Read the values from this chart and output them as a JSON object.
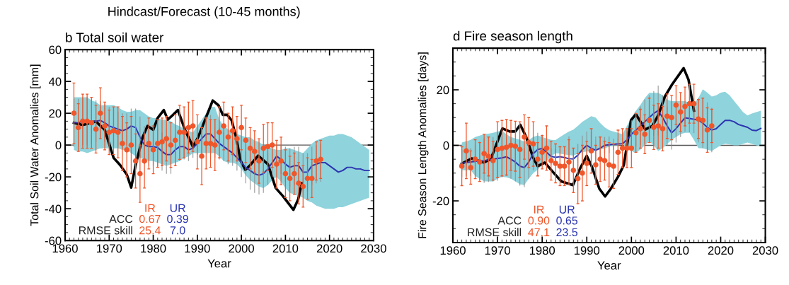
{
  "chart_data": [
    {
      "type": "line",
      "title": "Hindcast/Forecast (10-45 months)",
      "subtitle": "b Total soil water",
      "xlabel": "Year",
      "ylabel": "Total Soil Water Anomalies [mm]",
      "xlim": [
        1960,
        2030
      ],
      "xticks": [
        1960,
        1970,
        1980,
        1990,
        2000,
        2010,
        2020,
        2030
      ],
      "ylim": [
        -60,
        60
      ],
      "yticks": [
        -60,
        -40,
        -20,
        0,
        20,
        40,
        60
      ],
      "grid": false,
      "ref_lines": [
        {
          "axis": "y",
          "value": 0,
          "color": "#555555"
        }
      ],
      "annotations": [
        "IR",
        "UR",
        "ACC",
        "0.67",
        "0.39",
        "RMSE skill",
        "25.4",
        "7.0"
      ],
      "x": [
        1962,
        1963,
        1964,
        1965,
        1966,
        1967,
        1968,
        1969,
        1970,
        1971,
        1972,
        1973,
        1974,
        1975,
        1976,
        1977,
        1978,
        1979,
        1980,
        1981,
        1982,
        1983,
        1984,
        1985,
        1986,
        1987,
        1988,
        1989,
        1990,
        1991,
        1992,
        1993,
        1994,
        1995,
        1996,
        1997,
        1998,
        1999,
        2000,
        2001,
        2002,
        2003,
        2004,
        2005,
        2006,
        2007,
        2008,
        2009,
        2010,
        2011,
        2012,
        2013,
        2014,
        2015,
        2016,
        2017,
        2018
      ],
      "series": [
        {
          "type": "line",
          "color": "#2b35b0",
          "x": [
            1962,
            1963,
            1964,
            1965,
            1966,
            1967,
            1968,
            1969,
            1970,
            1971,
            1972,
            1973,
            1974,
            1975,
            1976,
            1977,
            1978,
            1979,
            1980,
            1981,
            1982,
            1983,
            1984,
            1985,
            1986,
            1987,
            1988,
            1989,
            1990,
            1991,
            1992,
            1993,
            1994,
            1995,
            1996,
            1997,
            1998,
            1999,
            2000,
            2001,
            2002,
            2003,
            2004,
            2005,
            2006,
            2007,
            2008,
            2009,
            2010,
            2011,
            2012,
            2013,
            2014,
            2015,
            2016,
            2017,
            2018,
            2019,
            2020,
            2021,
            2022,
            2023,
            2024,
            2025,
            2026,
            2027,
            2028,
            2029
          ],
          "values": [
            14,
            14,
            15,
            15,
            15,
            15,
            15.5,
            14,
            12,
            11,
            10,
            9,
            10,
            12,
            11,
            5,
            0,
            -1,
            -1,
            -1.5,
            -4,
            -6,
            -6,
            -3,
            -1,
            -1,
            -3,
            -2,
            1,
            4,
            7,
            7,
            4,
            1,
            -1,
            -3,
            -5,
            -8,
            -11,
            -14,
            -16,
            -18,
            -19,
            -18,
            -15,
            -11,
            -7,
            -9,
            -12,
            -14,
            -13,
            -13,
            -17,
            -17,
            -13,
            -12,
            -11,
            -11,
            -13,
            -15,
            -17,
            -16,
            -14,
            -14,
            -15,
            -15,
            -16,
            -16
          ],
          "errors": [
            15,
            15,
            15,
            15,
            14,
            13,
            12,
            12,
            12,
            12,
            11,
            11,
            10,
            11,
            12,
            13,
            12,
            12,
            12,
            12,
            12,
            12,
            12,
            10,
            9,
            8,
            7,
            6,
            7,
            9,
            11,
            12,
            12,
            10,
            9,
            9,
            8,
            8,
            9,
            10,
            12,
            12,
            12,
            12,
            10,
            9,
            7,
            9,
            11,
            12,
            12,
            12,
            12,
            12,
            12,
            12,
            12,
            null,
            null,
            null,
            null,
            null,
            null,
            null,
            null,
            null,
            null,
            null
          ],
          "upper": [
            30,
            30,
            30,
            30,
            28,
            27,
            25,
            25,
            25,
            25,
            24,
            22,
            21,
            21,
            22,
            22,
            20,
            18,
            17,
            17,
            16,
            16,
            15,
            13,
            12,
            10,
            9,
            8,
            12,
            16,
            20,
            24,
            24,
            16,
            12,
            10,
            8,
            7,
            6,
            5,
            5,
            3,
            2,
            0,
            -1,
            -2,
            -3,
            -3,
            -2,
            -2,
            -3,
            -4,
            -5,
            -2,
            1,
            3,
            4,
            5,
            6,
            6,
            7,
            7,
            6,
            5,
            3,
            1,
            -1,
            -3
          ],
          "lower": [
            -3,
            -4,
            -4,
            -5,
            -4,
            -3,
            -2,
            -2,
            -2,
            -2,
            -2,
            -3,
            -3,
            -5,
            -7,
            -8,
            -9,
            -10,
            -10,
            -11,
            -12,
            -13,
            -12,
            -11,
            -10,
            -8,
            -7,
            -5,
            -5,
            -5,
            -5,
            -5,
            -5,
            -7,
            -10,
            -11,
            -11,
            -12,
            -15,
            -19,
            -22,
            -24,
            -26,
            -27,
            -25,
            -22,
            -20,
            -23,
            -27,
            -30,
            -31,
            -32,
            -33,
            -35,
            -36,
            -38,
            -39,
            -40,
            -40,
            -40,
            -39,
            -39,
            -38,
            -37,
            -36,
            -35,
            -34,
            -33
          ]
        },
        {
          "type": "scatter",
          "marker": "circle",
          "color": "#f0562a",
          "values": [
            20,
            11,
            15,
            15,
            14,
            10,
            20,
            12,
            8,
            9,
            8,
            1,
            -3,
            0,
            -10,
            -18,
            -10,
            1,
            -3,
            1,
            2,
            4,
            0,
            3,
            8,
            8,
            11,
            12,
            2,
            -7,
            1,
            1,
            0,
            8,
            12,
            5,
            9,
            4,
            11,
            3,
            -2,
            -4,
            -10,
            -2,
            -1,
            0,
            -12,
            -10,
            -18,
            -21,
            -18,
            -24,
            -26,
            -21,
            -21,
            -10,
            -9
          ],
          "errors": [
            19,
            15,
            17,
            17,
            16,
            15,
            16,
            15,
            14,
            15,
            16,
            17,
            17,
            18,
            17,
            18,
            17,
            16,
            15,
            15,
            15,
            14,
            14,
            16,
            17,
            16,
            16,
            16,
            17,
            18,
            16,
            15,
            16,
            16,
            15,
            15,
            15,
            14,
            14,
            14,
            13,
            13,
            14,
            15,
            15,
            14,
            15,
            15,
            15,
            14,
            13,
            13,
            13,
            13,
            12,
            12,
            12
          ]
        },
        {
          "color": "#000000",
          "x": [
            1962,
            1964,
            1967,
            1969,
            1971,
            1972.5,
            1974,
            1975,
            1976,
            1977.6,
            1978.7,
            1980,
            1981,
            1982.4,
            1983.3,
            1984.3,
            1985.6,
            1987.2,
            1989,
            1990.2,
            1993.5,
            1994.8,
            1995.8,
            1996.8,
            1997.8,
            1998.8,
            1999.8,
            2000.9,
            2002,
            2003.8,
            2006,
            2007.8,
            2009.4,
            2011.8,
            2012.9,
            2013.7
          ],
          "values": [
            14,
            12.6,
            14.8,
            9.6,
            -8,
            -12.6,
            -18.5,
            -26.7,
            -12.6,
            5,
            12,
            9.6,
            17,
            22,
            16,
            18.5,
            22,
            9.6,
            -1,
            5,
            28,
            25,
            19,
            19,
            15.5,
            5,
            -9.6,
            -15.6,
            -12.6,
            -6.7,
            -12,
            -27,
            -32,
            -40.7,
            -34,
            -24
          ]
        }
      ]
    },
    {
      "type": "line",
      "title": "d Fire season length",
      "xlabel": "Year",
      "ylabel": "Fire Season Length Anomalies [days]",
      "xlim": [
        1960,
        2030
      ],
      "xticks": [
        1960,
        1970,
        1980,
        1990,
        2000,
        2010,
        2020,
        2030
      ],
      "ylim": [
        -35,
        35
      ],
      "yticks": [
        -20,
        0,
        20
      ],
      "grid": false,
      "ref_lines": [
        {
          "axis": "y",
          "value": 0,
          "color": "#555555"
        }
      ],
      "annotations": [
        "IR",
        "UR",
        "ACC",
        "0.90",
        "0.65",
        "RMSE skill",
        "47.1",
        "23.5"
      ],
      "x": [
        1962,
        1963,
        1964,
        1965,
        1966,
        1967,
        1968,
        1969,
        1970,
        1971,
        1972,
        1973,
        1974,
        1975,
        1976,
        1977,
        1978,
        1979,
        1980,
        1981,
        1982,
        1983,
        1984,
        1985,
        1986,
        1987,
        1988,
        1989,
        1990,
        1991,
        1992,
        1993,
        1994,
        1995,
        1996,
        1997,
        1998,
        1999,
        2000,
        2001,
        2002,
        2003,
        2004,
        2005,
        2006,
        2007,
        2008,
        2009,
        2010,
        2011,
        2012,
        2013,
        2014,
        2015,
        2016,
        2017,
        2018
      ],
      "series": [
        {
          "type": "line",
          "color": "#2b35b0",
          "x": [
            1962,
            1963,
            1964,
            1965,
            1966,
            1967,
            1968,
            1969,
            1970,
            1971,
            1972,
            1973,
            1974,
            1975,
            1976,
            1977,
            1978,
            1979,
            1980,
            1981,
            1982,
            1983,
            1984,
            1985,
            1986,
            1987,
            1988,
            1989,
            1990,
            1991,
            1992,
            1993,
            1994,
            1995,
            1996,
            1997,
            1998,
            1999,
            2000,
            2001,
            2002,
            2003,
            2004,
            2005,
            2006,
            2007,
            2008,
            2009,
            2010,
            2011,
            2012,
            2013,
            2014,
            2015,
            2016,
            2017,
            2018,
            2019,
            2020,
            2021,
            2022,
            2023,
            2024,
            2025,
            2026,
            2027,
            2028,
            2029
          ],
          "values": [
            -6.4,
            -6.2,
            -6,
            -5.8,
            -5.6,
            -5.5,
            -5.2,
            -5,
            -4.7,
            -4.5,
            -4.1,
            -5,
            -6,
            -7.5,
            -8,
            -6,
            -3,
            -1.5,
            -1.1,
            -2.5,
            -4,
            -4.3,
            -4.1,
            -4.4,
            -4.8,
            -4.9,
            -3.5,
            -1.5,
            0,
            -1,
            -1.8,
            -1,
            0,
            0.2,
            0.4,
            0.5,
            0.6,
            2,
            4,
            5.5,
            7,
            8.5,
            10,
            11.5,
            12.5,
            10,
            7,
            4.5,
            6,
            8,
            9.9,
            9.7,
            9.4,
            9.1,
            8,
            6.5,
            5.5,
            6,
            7.5,
            9,
            9,
            8.5,
            7.5,
            7,
            6.5,
            5.5,
            5.3,
            6.1
          ],
          "errors": [
            5,
            5,
            5,
            6,
            7,
            8,
            8,
            8,
            8,
            7,
            7,
            7,
            7,
            7,
            7,
            6,
            6,
            6,
            5,
            4,
            3,
            3,
            3,
            3,
            8,
            4,
            4,
            5,
            5,
            6,
            5,
            4,
            3,
            3,
            2,
            2,
            2,
            3,
            5,
            6,
            7,
            8,
            8,
            8,
            9,
            8,
            7,
            6,
            5,
            5,
            5,
            5,
            5,
            8,
            9,
            9,
            8,
            null,
            null,
            null,
            null,
            null,
            null,
            null,
            null,
            null,
            null,
            null
          ],
          "upper": [
            1,
            1.5,
            2,
            3,
            3.5,
            4,
            4.2,
            4.5,
            5,
            5.3,
            4,
            3,
            2.5,
            2,
            1.4,
            2,
            3,
            3.6,
            3,
            2.5,
            2,
            1.9,
            3,
            4,
            5,
            5.7,
            7,
            8.5,
            9.5,
            10.5,
            10,
            8,
            6.5,
            5.5,
            5,
            4.5,
            4,
            7,
            10,
            12.5,
            14.5,
            17,
            18.9,
            18.9,
            18.9,
            18,
            16.5,
            15.9,
            15.9,
            15.9,
            15.9,
            15.5,
            15,
            17,
            20.2,
            19,
            17.6,
            18,
            19,
            19.3,
            18,
            16,
            14,
            12,
            10.8,
            11.5,
            12,
            12.5
          ],
          "lower": [
            -9,
            -9,
            -9,
            -11,
            -12,
            -13,
            -13,
            -13,
            -12,
            -11.3,
            -11.5,
            -12,
            -13,
            -14,
            -14.3,
            -12,
            -10,
            -8.8,
            -7,
            -5.5,
            -4,
            -2.8,
            -3,
            -3.3,
            -3.5,
            -3.7,
            -3,
            -2.5,
            -2.2,
            -2,
            -1.8,
            -1.5,
            -1.1,
            -0.5,
            0,
            0,
            0.5,
            -1,
            -2,
            -2.8,
            -1.5,
            0,
            1.4,
            0,
            -2,
            -1,
            0.5,
            1.9,
            3,
            4,
            4.5,
            4.5,
            2,
            -1,
            -1.1,
            -1.5,
            -2,
            -1,
            0,
            0.6,
            0.3,
            0,
            0,
            0.5,
            1,
            0.5,
            0,
            -0.3
          ]
        },
        {
          "type": "scatter",
          "marker": "circle",
          "color": "#f0562a",
          "values": [
            -7.5,
            -2,
            -8,
            -5,
            -6,
            -3,
            -4,
            -5.5,
            -1.5,
            -1,
            -0.7,
            0,
            -0.3,
            -1.5,
            3,
            1,
            0.5,
            -5,
            -2.5,
            -1,
            -5.5,
            -6.5,
            -7.5,
            -7.5,
            -6,
            -9,
            -12,
            -10,
            -6.5,
            -2,
            -7,
            -5,
            -5.5,
            -7,
            -7.5,
            -2.5,
            -1,
            -1,
            -1,
            4.5,
            6,
            4,
            9,
            6.5,
            7,
            6,
            10.5,
            10,
            14.5,
            12,
            14,
            15,
            15,
            9.5,
            9,
            5.5,
            7
          ],
          "errors": [
            7,
            10,
            6,
            7,
            7,
            7,
            7,
            7,
            10,
            10,
            10,
            9,
            9,
            10,
            8,
            9,
            8,
            6,
            6,
            8,
            7,
            7,
            7,
            7,
            8,
            8,
            9,
            10,
            8,
            8,
            7,
            8,
            7,
            8,
            8,
            8,
            7,
            7,
            7,
            7,
            7,
            7,
            8,
            8,
            8,
            8,
            8,
            8,
            7,
            7,
            7,
            7,
            7,
            7,
            8,
            8,
            6
          ]
        },
        {
          "color": "#000000",
          "x": [
            1962,
            1964.2,
            1966.9,
            1968.5,
            1971.1,
            1972.7,
            1974,
            1975.1,
            1976.4,
            1978,
            1979,
            1980.6,
            1982.2,
            1984.3,
            1986.9,
            1988.5,
            1990,
            1991.2,
            1992.8,
            1994.1,
            1995.4,
            1997,
            1998.3,
            1999.9,
            2001,
            2003.1,
            2004.7,
            2006,
            2007.5,
            2009.1,
            2011.7,
            2012.8,
            2014
          ],
          "values": [
            -6.6,
            -4.7,
            -6.2,
            -4.9,
            6.1,
            5,
            5,
            7.4,
            3.1,
            -4.5,
            -7.5,
            -6.2,
            -9.2,
            -13,
            -14.3,
            -8.3,
            -3.8,
            -7.9,
            -15.6,
            -18.4,
            -15.6,
            -11.3,
            -7.1,
            9.1,
            11.2,
            5.7,
            7,
            10.8,
            17.6,
            21.9,
            27.8,
            23.6,
            12.5
          ]
        }
      ]
    }
  ]
}
